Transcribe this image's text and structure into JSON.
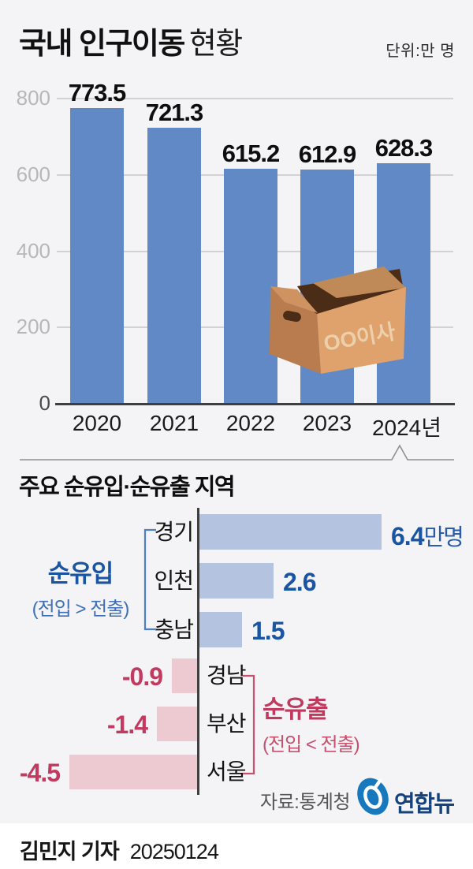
{
  "header": {
    "title_bold": "국내 인구이동",
    "title_regular": "현황",
    "unit": "단위:만 명"
  },
  "chart_data": [
    {
      "type": "bar",
      "title": "국내 인구이동 현황",
      "unit": "만 명",
      "categories": [
        "2020",
        "2021",
        "2022",
        "2023",
        "2024년"
      ],
      "values": [
        773.5,
        721.3,
        615.2,
        612.9,
        628.3
      ],
      "yticks": [
        800,
        600,
        400,
        200,
        0
      ],
      "ylim": [
        0,
        800
      ],
      "grid": true,
      "bar_color": "#6089c6"
    },
    {
      "type": "bar",
      "orientation": "horizontal",
      "title": "주요 순유입·순유출 지역",
      "series": [
        {
          "name": "순유입 (전입 > 전출)",
          "categories": [
            "경기",
            "인천",
            "충남"
          ],
          "values": [
            6.4,
            2.6,
            1.5
          ],
          "value_suffix_first": "만명",
          "color": "#b4c3e0"
        },
        {
          "name": "순유출 (전입 < 전출)",
          "categories": [
            "경남",
            "부산",
            "서울"
          ],
          "values": [
            -0.9,
            -1.4,
            -4.5
          ],
          "color": "#edc9d1"
        }
      ]
    }
  ],
  "section2": {
    "title": "주요 순유입·순유출 지역",
    "inflow_label": "순유입",
    "inflow_sub": "(전입 > 전출)",
    "outflow_label": "순유출",
    "outflow_sub": "(전입 < 전출)"
  },
  "box_illustration": {
    "label": "OO이사"
  },
  "source": {
    "label": "자료:통계청",
    "logo_text": "연합뉴스"
  },
  "footer": {
    "byline": "김민지 기자",
    "date": "20250124"
  },
  "colors": {
    "bar_blue": "#6089c6",
    "light_blue": "#b4c3e0",
    "pink": "#edc9d1",
    "inflow_text": "#1a55a4",
    "outflow_text": "#c23a5f",
    "background": "#f4f4f6"
  }
}
